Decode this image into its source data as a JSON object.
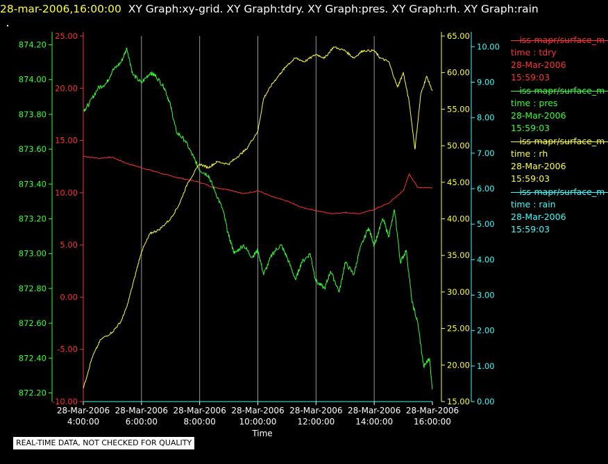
{
  "header": {
    "timestamp": "28-mar-2006,16:00:00",
    "items": "XY Graph:xy-grid.  XY Graph:tdry.  XY Graph:pres.  XY Graph:rh.  XY Graph:rain"
  },
  "legend": [
    {
      "series": "iss-mapr/surface_m",
      "label": "time : tdry",
      "date": "28-Mar-2006",
      "time": "15:59:03",
      "color": "#ff3030"
    },
    {
      "series": "iss-mapr/surface_m",
      "label": "time : pres",
      "date": "28-Mar-2006",
      "time": "15:59:03",
      "color": "#33ff33"
    },
    {
      "series": "iss-mapr/surface_m",
      "label": "time : rh",
      "date": "28-Mar-2006",
      "time": "15:59:03",
      "color": "#ffff33"
    },
    {
      "series": "iss-mapr/surface_m",
      "label": "time : rain",
      "date": "28-Mar-2006",
      "time": "15:59:03",
      "color": "#33ffff"
    }
  ],
  "footer_note": "REAL-TIME DATA, NOT CHECKED FOR QUALITY",
  "chart_data": {
    "type": "line",
    "xlabel": "Time",
    "x_ticks": [
      {
        "date": "28-Mar-2006",
        "time": "4:00:00"
      },
      {
        "date": "28-Mar-2006",
        "time": "6:00:00"
      },
      {
        "date": "28-Mar-2006",
        "time": "8:00:00"
      },
      {
        "date": "28-Mar-2006",
        "time": "10:00:00"
      },
      {
        "date": "28-Mar-2006",
        "time": "12:00:00"
      },
      {
        "date": "28-Mar-2006",
        "time": "14:00:00"
      },
      {
        "date": "28-Mar-2006",
        "time": "16:00:00"
      }
    ],
    "xlim": [
      4,
      16
    ],
    "grid": "vertical",
    "axes": {
      "pres": {
        "color": "#33ff33",
        "ylim": [
          872.15,
          874.25
        ],
        "ticks": [
          "872.20",
          "872.40",
          "872.60",
          "872.80",
          "873.00",
          "873.20",
          "873.40",
          "873.60",
          "873.80",
          "874.00",
          "874.20"
        ]
      },
      "tdry": {
        "color": "#ff3030",
        "ylim": [
          -10,
          25
        ],
        "ticks": [
          "-10.00",
          "-5.00",
          "0.00",
          "5.00",
          "10.00",
          "15.00",
          "20.00",
          "25.00"
        ]
      },
      "rh": {
        "color": "#ffff33",
        "ylim": [
          15,
          65
        ],
        "ticks": [
          "15.00",
          "20.00",
          "25.00",
          "30.00",
          "35.00",
          "40.00",
          "45.00",
          "50.00",
          "55.00",
          "60.00",
          "65.00"
        ]
      },
      "rain": {
        "color": "#33ffff",
        "ylim": [
          0,
          10.3
        ],
        "ticks": [
          "0.00",
          "1.00",
          "2.00",
          "3.00",
          "4.00",
          "5.00",
          "6.00",
          "7.00",
          "8.00",
          "9.00",
          "10.00"
        ]
      }
    },
    "series": [
      {
        "axis": "tdry",
        "x": [
          4,
          4.5,
          5,
          5.5,
          6,
          6.5,
          7,
          7.5,
          8,
          8.5,
          9,
          9.5,
          10,
          10.5,
          11,
          11.5,
          12,
          12.5,
          13,
          13.5,
          14,
          14.5,
          15,
          15.2,
          15.5,
          16
        ],
        "y": [
          13.5,
          13.3,
          13.4,
          12.8,
          12.4,
          12.0,
          11.6,
          11.3,
          11.0,
          10.5,
          10.3,
          9.9,
          10.2,
          9.6,
          9.2,
          8.6,
          8.3,
          8.0,
          8.1,
          8.0,
          8.4,
          9.0,
          10.2,
          11.8,
          10.5,
          10.5
        ]
      },
      {
        "axis": "pres",
        "x": [
          4,
          4.2,
          4.5,
          4.8,
          5,
          5.3,
          5.5,
          5.7,
          6,
          6.3,
          6.5,
          6.8,
          7,
          7.2,
          7.5,
          7.8,
          8,
          8.3,
          8.5,
          8.8,
          9,
          9.2,
          9.5,
          9.8,
          10,
          10.2,
          10.5,
          10.8,
          11,
          11.3,
          11.5,
          11.8,
          12,
          12.3,
          12.5,
          12.8,
          13,
          13.3,
          13.5,
          13.8,
          14,
          14.3,
          14.5,
          14.7,
          14.9,
          15.1,
          15.3,
          15.5,
          15.7,
          15.9,
          16
        ],
        "y": [
          873.82,
          873.86,
          873.95,
          873.98,
          874.05,
          874.1,
          874.18,
          874.03,
          873.98,
          874.04,
          874.02,
          873.95,
          873.85,
          873.7,
          873.65,
          873.55,
          873.48,
          873.45,
          873.37,
          873.25,
          873.1,
          873.0,
          873.05,
          872.98,
          873.02,
          872.88,
          873.0,
          873.05,
          872.98,
          872.85,
          872.95,
          873.0,
          872.84,
          872.8,
          872.9,
          872.78,
          872.95,
          872.88,
          873.02,
          873.15,
          873.05,
          873.2,
          873.1,
          873.25,
          872.95,
          873.02,
          872.72,
          872.6,
          872.35,
          872.4,
          872.22
        ]
      },
      {
        "axis": "rh",
        "x": [
          4,
          4.3,
          4.6,
          5,
          5.3,
          5.5,
          5.8,
          6,
          6.3,
          6.6,
          7,
          7.3,
          7.6,
          8,
          8.3,
          8.6,
          9,
          9.3,
          9.6,
          10,
          10.2,
          10.5,
          10.8,
          11,
          11.3,
          11.6,
          12,
          12.3,
          12.6,
          13,
          13.3,
          13.6,
          14,
          14.2,
          14.5,
          14.8,
          15,
          15.2,
          15.4,
          15.6,
          15.8,
          16
        ],
        "y": [
          16.8,
          21.0,
          23.5,
          24.5,
          26.0,
          28.0,
          32.5,
          35.5,
          38.0,
          38.5,
          40.0,
          42.0,
          45.0,
          47.5,
          47.0,
          47.8,
          47.5,
          48.5,
          49.5,
          52.0,
          56.5,
          58.5,
          60.0,
          61.0,
          62.0,
          61.5,
          62.5,
          62.0,
          63.5,
          63.0,
          62.0,
          63.0,
          63.0,
          62.0,
          61.5,
          58.0,
          60.0,
          56.0,
          49.5,
          57.0,
          59.5,
          57.5
        ]
      },
      {
        "axis": "rain",
        "x": [
          4,
          16
        ],
        "y": [
          0,
          0
        ]
      }
    ]
  }
}
